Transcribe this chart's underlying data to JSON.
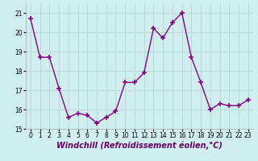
{
  "x": [
    0,
    1,
    2,
    3,
    4,
    5,
    6,
    7,
    8,
    9,
    10,
    11,
    12,
    13,
    14,
    15,
    16,
    17,
    18,
    19,
    20,
    21,
    22,
    23
  ],
  "y": [
    20.7,
    18.7,
    18.7,
    17.1,
    15.6,
    15.8,
    15.7,
    15.3,
    15.6,
    15.9,
    17.4,
    17.4,
    17.9,
    20.2,
    19.7,
    20.5,
    21.0,
    18.7,
    17.4,
    16.0,
    16.3,
    16.2,
    16.2,
    16.5
  ],
  "line_color": "#880088",
  "marker": "+",
  "marker_size": 4,
  "marker_lw": 1.2,
  "bg_color": "#d0eeee",
  "grid_color": "#b8dada",
  "xlabel": "Windchill (Refroidissement éolien,°C)",
  "ylim": [
    15,
    21.5
  ],
  "xlim": [
    -0.5,
    23.5
  ],
  "yticks": [
    15,
    16,
    17,
    18,
    19,
    20,
    21
  ],
  "xticks": [
    0,
    1,
    2,
    3,
    4,
    5,
    6,
    7,
    8,
    9,
    10,
    11,
    12,
    13,
    14,
    15,
    16,
    17,
    18,
    19,
    20,
    21,
    22,
    23
  ],
  "tick_fontsize": 5.5,
  "xlabel_fontsize": 7.0,
  "line_width": 1.0
}
